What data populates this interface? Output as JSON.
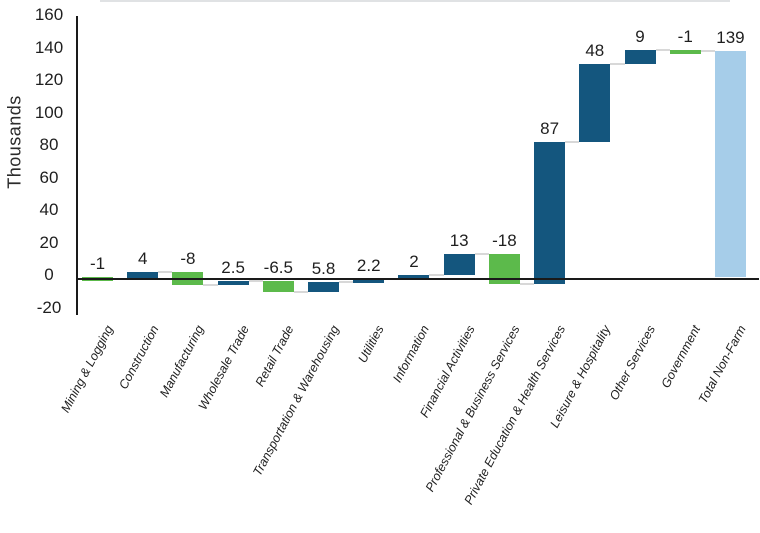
{
  "chart_data": {
    "type": "bar",
    "subtype": "waterfall",
    "title": "",
    "xlabel": "",
    "ylabel": "Thousands",
    "ylim": [
      -20,
      160
    ],
    "ytick_step": 20,
    "ytick_labels": [
      "160",
      "140",
      "120",
      "100",
      "80",
      "60",
      "40",
      "20",
      "0",
      "-20"
    ],
    "grid": false,
    "legend_position": "none",
    "categories": [
      "Mining & Logging",
      "Construction",
      "Manufacturing",
      "Wholesale Trade",
      "Retail Trade",
      "Transportation & Warehousing",
      "Utilities",
      "Information",
      "Financial Activities",
      "Professional & Business Services",
      "Private Education & Health Services",
      "Leisure & Hospitality",
      "Other Services",
      "Government",
      "Total Non-Farm"
    ],
    "values": [
      -1,
      4,
      -8,
      2.5,
      -6.5,
      5.8,
      2.2,
      2,
      13,
      -18,
      87,
      48,
      9,
      -1,
      139
    ],
    "value_labels": [
      "-1",
      "4",
      "-8",
      "2.5",
      "-6.5",
      "5.8",
      "2.2",
      "2",
      "13",
      "-18",
      "87",
      "48",
      "9",
      "-1",
      "139"
    ],
    "bar_roles": [
      "decrease",
      "increase",
      "decrease",
      "increase",
      "decrease",
      "increase",
      "increase",
      "increase",
      "increase",
      "decrease",
      "increase",
      "increase",
      "increase",
      "decrease",
      "total"
    ],
    "colors": {
      "increase": "#14567E",
      "decrease": "#5CBA4B",
      "total": "#A6CDE9",
      "axis_line": "#1A1A1A",
      "connector": "#D8D8D8",
      "text": "#1F1F1F"
    }
  }
}
